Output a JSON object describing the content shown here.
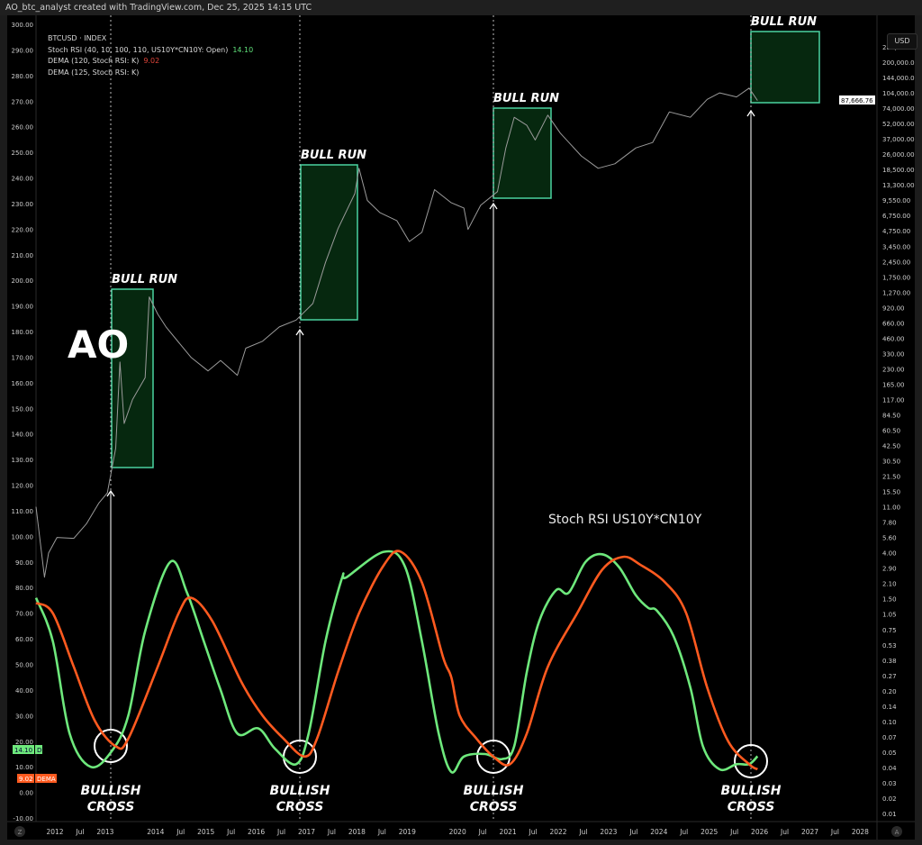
{
  "header": {
    "title": "AO_btc_analyst created with TradingView.com, Dec 25, 2025 14:15 UTC"
  },
  "legend": {
    "symbol": "BTCUSD · INDEX",
    "stoch": "Stoch RSI (40, 10, 100, 110, US10Y*CN10Y: Open)",
    "stoch_value": "14.10",
    "dema1": "DEMA (120, Stoch RSI: K)",
    "dema1_value": "9.02",
    "dema2": "DEMA (125, Stoch RSI: K)"
  },
  "currency_button": "USD",
  "scale_buttons": {
    "left": "Z",
    "right": "A"
  },
  "colors": {
    "price": "#9b9b9b",
    "stoch": "#6ee87c",
    "dema": "#ff5a1f",
    "box_fill": "#06280f",
    "box_stroke": "#4ad3a0",
    "background": "#000000"
  },
  "annotations": {
    "ao": "AO",
    "indicator_title": "Stoch RSI US10Y*CN10Y",
    "bull_run": [
      "BULL RUN",
      "BULL RUN",
      "BULL RUN",
      "BULL RUN"
    ],
    "bullish_cross": [
      [
        "BULLISH",
        "CROSS"
      ],
      [
        "BULLISH",
        "CROSS"
      ],
      [
        "BULLISH",
        "CROSS"
      ],
      [
        "BULLISH",
        "CROSS"
      ]
    ]
  },
  "chart_data": {
    "type": "line",
    "xlabel": "",
    "ylabel": "",
    "x_ticks": [
      "2012",
      "Jul",
      "2013",
      "2014",
      "Jul",
      "2015",
      "Jul",
      "2016",
      "Jul",
      "2017",
      "Jul",
      "2018",
      "Jul",
      "2019",
      "2020",
      "Jul",
      "2021",
      "Jul",
      "2022",
      "Jul",
      "2023",
      "Jul",
      "2024",
      "Jul",
      "2025",
      "Jul",
      "2026",
      "Jul",
      "2027",
      "Jul",
      "2028"
    ],
    "left_axis": {
      "range": [
        -10,
        300
      ],
      "ticks": [
        "300.00",
        "290.00",
        "280.00",
        "270.00",
        "260.00",
        "250.00",
        "240.00",
        "230.00",
        "220.00",
        "210.00",
        "200.00",
        "190.00",
        "180.00",
        "170.00",
        "160.00",
        "150.00",
        "140.00",
        "130.00",
        "120.00",
        "110.00",
        "100.00",
        "90.00",
        "80.00",
        "70.00",
        "60.00",
        "50.00",
        "40.00",
        "30.00",
        "20.00",
        "10.00",
        "0.00",
        "-10.00"
      ]
    },
    "right_axis": {
      "scale": "log",
      "unit": "USD",
      "ticks": [
        "280,000.00",
        "200,000.00",
        "144,000.00",
        "104,000.00",
        "74,000.00",
        "52,000.00",
        "37,000.00",
        "26,000.00",
        "18,500.00",
        "13,300.00",
        "9,550.00",
        "6,750.00",
        "4,750.00",
        "3,450.00",
        "2,450.00",
        "1,750.00",
        "1,270.00",
        "920.00",
        "660.00",
        "460.00",
        "330.00",
        "230.00",
        "165.00",
        "117.00",
        "84.50",
        "60.50",
        "42.50",
        "30.50",
        "21.50",
        "15.50",
        "11.00",
        "7.80",
        "5.60",
        "4.00",
        "2.90",
        "2.10",
        "1.50",
        "1.05",
        "0.75",
        "0.53",
        "0.38",
        "0.27",
        "0.20",
        "0.14",
        "0.10",
        "0.07",
        "0.05",
        "0.04",
        "0.03",
        "0.02",
        "0.01"
      ]
    },
    "last_price_label": "87,666.76",
    "stoch_badge": {
      "value": "14.10",
      "label": "D"
    },
    "dema_badge": {
      "value": "9.02",
      "label": "DEMA"
    },
    "series": [
      {
        "name": "BTCUSD",
        "axis": "right",
        "points": [
          [
            "2011-08",
            11
          ],
          [
            "2011-10",
            2.4
          ],
          [
            "2011-11",
            4
          ],
          [
            "2012-01",
            5.6
          ],
          [
            "2012-05",
            5.5
          ],
          [
            "2012-08",
            7.5
          ],
          [
            "2012-11",
            12
          ],
          [
            "2013-01",
            15
          ],
          [
            "2013-03",
            40
          ],
          [
            "2013-04",
            270
          ],
          [
            "2013-05",
            70
          ],
          [
            "2013-07",
            117
          ],
          [
            "2013-10",
            190
          ],
          [
            "2013-11",
            1150
          ],
          [
            "2014-01",
            800
          ],
          [
            "2014-03",
            600
          ],
          [
            "2014-06",
            420
          ],
          [
            "2014-09",
            300
          ],
          [
            "2015-01",
            220
          ],
          [
            "2015-04",
            280
          ],
          [
            "2015-08",
            200
          ],
          [
            "2015-10",
            370
          ],
          [
            "2016-02",
            430
          ],
          [
            "2016-06",
            600
          ],
          [
            "2016-10",
            700
          ],
          [
            "2017-02",
            1000
          ],
          [
            "2017-05",
            2400
          ],
          [
            "2017-08",
            5000
          ],
          [
            "2017-12",
            11000
          ],
          [
            "2018-01",
            19000
          ],
          [
            "2018-03",
            9500
          ],
          [
            "2018-06",
            7200
          ],
          [
            "2018-10",
            6000
          ],
          [
            "2019-01",
            3800
          ],
          [
            "2019-04",
            4600
          ],
          [
            "2019-07",
            12000
          ],
          [
            "2019-11",
            9000
          ],
          [
            "2020-02",
            8000
          ],
          [
            "2020-03",
            4900
          ],
          [
            "2020-06",
            8500
          ],
          [
            "2020-10",
            11500
          ],
          [
            "2020-12",
            30000
          ],
          [
            "2021-02",
            60000
          ],
          [
            "2021-05",
            50000
          ],
          [
            "2021-07",
            36000
          ],
          [
            "2021-10",
            63000
          ],
          [
            "2022-01",
            42000
          ],
          [
            "2022-06",
            25000
          ],
          [
            "2022-10",
            19000
          ],
          [
            "2023-02",
            21000
          ],
          [
            "2023-07",
            30000
          ],
          [
            "2023-11",
            34000
          ],
          [
            "2024-03",
            68000
          ],
          [
            "2024-08",
            60000
          ],
          [
            "2024-12",
            90000
          ],
          [
            "2025-03",
            104000
          ],
          [
            "2025-07",
            95000
          ],
          [
            "2025-10",
            115000
          ],
          [
            "2025-12",
            87666.76
          ]
        ]
      },
      {
        "name": "Stoch RSI",
        "axis": "left",
        "points": [
          [
            "2011-08",
            76
          ],
          [
            "2011-12",
            59
          ],
          [
            "2012-04",
            23
          ],
          [
            "2012-09",
            10
          ],
          [
            "2013-02",
            16
          ],
          [
            "2013-06",
            30
          ],
          [
            "2013-10",
            63
          ],
          [
            "2014-04",
            90
          ],
          [
            "2014-08",
            78
          ],
          [
            "2014-12",
            59
          ],
          [
            "2015-04",
            40
          ],
          [
            "2015-08",
            23
          ],
          [
            "2016-01",
            25
          ],
          [
            "2016-05",
            17
          ],
          [
            "2016-10",
            11
          ],
          [
            "2017-01",
            23
          ],
          [
            "2017-05",
            59
          ],
          [
            "2017-09",
            84
          ],
          [
            "2017-10",
            84
          ],
          [
            "2018-07",
            94
          ],
          [
            "2018-12",
            88
          ],
          [
            "2019-04",
            59
          ],
          [
            "2019-08",
            23
          ],
          [
            "2019-11",
            8
          ],
          [
            "2020-02",
            14
          ],
          [
            "2020-07",
            15
          ],
          [
            "2020-11",
            13
          ],
          [
            "2021-02",
            18
          ],
          [
            "2021-05",
            47
          ],
          [
            "2021-08",
            67
          ],
          [
            "2021-12",
            79
          ],
          [
            "2022-03",
            78
          ],
          [
            "2022-07",
            90
          ],
          [
            "2022-11",
            93
          ],
          [
            "2023-03",
            88
          ],
          [
            "2023-07",
            77
          ],
          [
            "2023-10",
            72
          ],
          [
            "2023-12",
            71
          ],
          [
            "2024-04",
            61
          ],
          [
            "2024-08",
            41
          ],
          [
            "2024-11",
            18
          ],
          [
            "2025-03",
            9
          ],
          [
            "2025-07",
            11
          ],
          [
            "2025-10",
            11
          ],
          [
            "2025-12",
            14.1
          ]
        ]
      },
      {
        "name": "DEMA",
        "axis": "left",
        "points": [
          [
            "2011-08",
            74
          ],
          [
            "2011-12",
            70
          ],
          [
            "2012-05",
            49
          ],
          [
            "2012-10",
            28
          ],
          [
            "2013-03",
            18
          ],
          [
            "2013-06",
            21
          ],
          [
            "2014-01",
            49
          ],
          [
            "2014-06",
            70
          ],
          [
            "2014-09",
            76
          ],
          [
            "2015-02",
            67
          ],
          [
            "2015-09",
            43
          ],
          [
            "2016-02",
            30
          ],
          [
            "2016-07",
            21
          ],
          [
            "2016-12",
            14
          ],
          [
            "2017-03",
            21
          ],
          [
            "2017-08",
            47
          ],
          [
            "2018-01",
            70
          ],
          [
            "2018-07",
            89
          ],
          [
            "2018-11",
            94
          ],
          [
            "2019-04",
            82
          ],
          [
            "2019-09",
            53
          ],
          [
            "2019-11",
            45
          ],
          [
            "2020-01",
            30
          ],
          [
            "2020-05",
            21
          ],
          [
            "2020-09",
            14
          ],
          [
            "2021-01",
            11
          ],
          [
            "2021-05",
            23
          ],
          [
            "2021-10",
            49
          ],
          [
            "2022-05",
            70
          ],
          [
            "2022-11",
            87
          ],
          [
            "2023-04",
            92
          ],
          [
            "2023-08",
            89
          ],
          [
            "2024-02",
            82
          ],
          [
            "2024-07",
            70
          ],
          [
            "2024-12",
            41
          ],
          [
            "2025-05",
            20
          ],
          [
            "2025-10",
            11
          ],
          [
            "2025-12",
            9.02
          ]
        ]
      }
    ]
  }
}
